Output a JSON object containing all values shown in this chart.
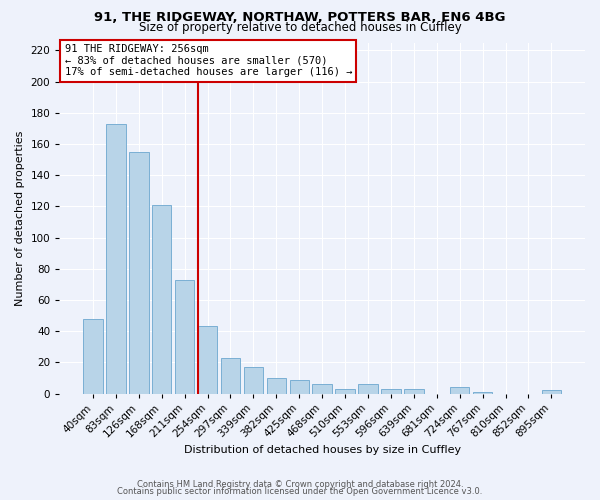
{
  "title": "91, THE RIDGEWAY, NORTHAW, POTTERS BAR, EN6 4BG",
  "subtitle": "Size of property relative to detached houses in Cuffley",
  "xlabel": "Distribution of detached houses by size in Cuffley",
  "ylabel": "Number of detached properties",
  "bar_color": "#b8d4e8",
  "bar_edge_color": "#7aafd4",
  "categories": [
    "40sqm",
    "83sqm",
    "126sqm",
    "168sqm",
    "211sqm",
    "254sqm",
    "297sqm",
    "339sqm",
    "382sqm",
    "425sqm",
    "468sqm",
    "510sqm",
    "553sqm",
    "596sqm",
    "639sqm",
    "681sqm",
    "724sqm",
    "767sqm",
    "810sqm",
    "852sqm",
    "895sqm"
  ],
  "values": [
    48,
    173,
    155,
    121,
    73,
    43,
    23,
    17,
    10,
    9,
    6,
    3,
    6,
    3,
    3,
    0,
    4,
    1,
    0,
    0,
    2
  ],
  "marker_index": 5,
  "marker_label": "91 THE RIDGEWAY: 256sqm",
  "annotation_line1": "← 83% of detached houses are smaller (570)",
  "annotation_line2": "17% of semi-detached houses are larger (116) →",
  "annotation_box_color": "#ffffff",
  "annotation_box_edge": "#cc0000",
  "marker_line_color": "#cc0000",
  "ylim": [
    0,
    225
  ],
  "yticks": [
    0,
    20,
    40,
    60,
    80,
    100,
    120,
    140,
    160,
    180,
    200,
    220
  ],
  "footer1": "Contains HM Land Registry data © Crown copyright and database right 2024.",
  "footer2": "Contains public sector information licensed under the Open Government Licence v3.0.",
  "background_color": "#eef2fb",
  "grid_color": "#ffffff",
  "title_fontsize": 9.5,
  "subtitle_fontsize": 8.5,
  "footer_fontsize": 6.0,
  "ylabel_fontsize": 8.0,
  "xlabel_fontsize": 8.0,
  "tick_fontsize": 7.5,
  "annot_fontsize": 7.5
}
